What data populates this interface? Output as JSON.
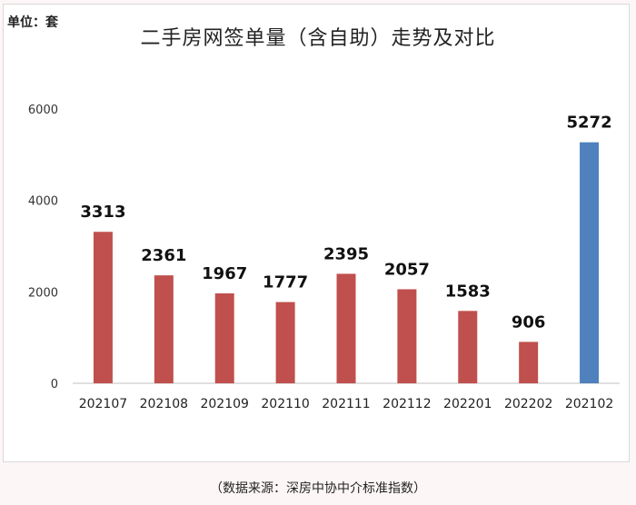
{
  "unit_label": "单位：套",
  "source_note": "（数据来源：深房中协中介标准指数）",
  "chart_data": {
    "type": "bar",
    "title": "二手房网签单量（含自助）走势及对比",
    "categories": [
      "202107",
      "202108",
      "202109",
      "202110",
      "202111",
      "202112",
      "202201",
      "202202",
      "202102"
    ],
    "values": [
      3313,
      2361,
      1967,
      1777,
      2395,
      2057,
      1583,
      906,
      5272
    ],
    "data_labels": [
      "3313",
      "2361",
      "1967",
      "1777",
      "2395",
      "2057",
      "1583",
      "906",
      "5272"
    ],
    "bar_colors": [
      "#c0504d",
      "#c0504d",
      "#c0504d",
      "#c0504d",
      "#c0504d",
      "#c0504d",
      "#c0504d",
      "#c0504d",
      "#4f81bd"
    ],
    "y_ticks": [
      0,
      2000,
      4000,
      6000
    ],
    "y_tick_labels": [
      "0",
      "2000",
      "4000",
      "6000"
    ],
    "ylim": [
      0,
      6000
    ],
    "xlabel": "",
    "ylabel": "",
    "grid": false,
    "legend": "none"
  }
}
